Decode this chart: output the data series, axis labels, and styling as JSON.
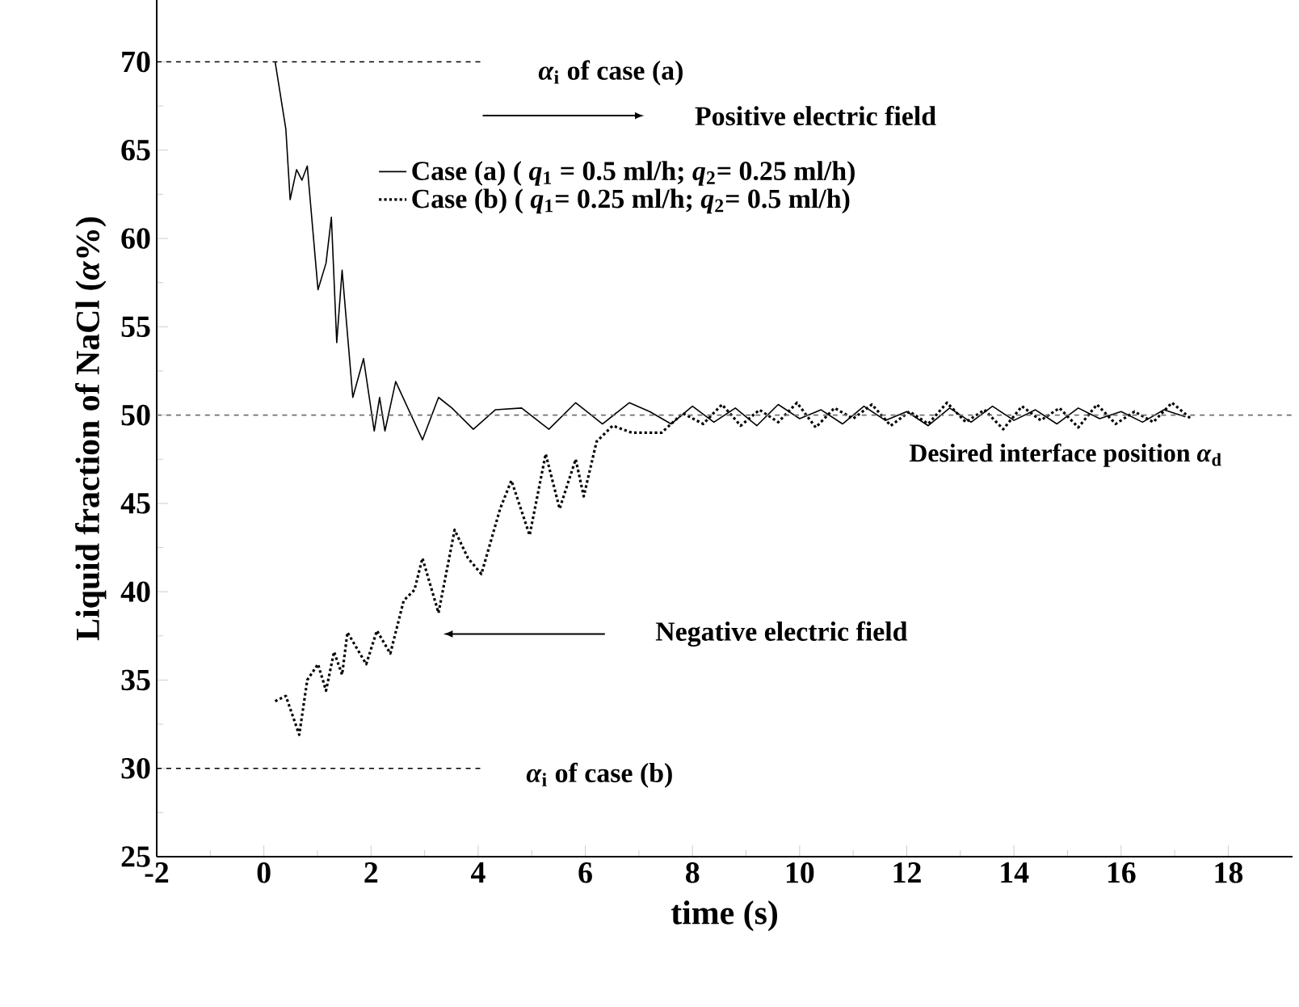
{
  "chart_data": {
    "type": "line",
    "xlabel": "time (s)",
    "ylabel": "Liquid fraction of NaCl (*α*%)",
    "xlim": [
      -2,
      19.2
    ],
    "ylim": [
      25,
      73.5
    ],
    "xticks": [
      -2,
      0,
      2,
      4,
      6,
      8,
      10,
      12,
      14,
      16,
      18
    ],
    "yticks": [
      25,
      30,
      35,
      40,
      45,
      50,
      55,
      60,
      65,
      70
    ],
    "legend": "top",
    "marker": "none",
    "grid": false,
    "ref_lines": [
      {
        "axis": "y",
        "value": 50,
        "label": "Desired interface position  *α*$_{d}$",
        "color": "#707070",
        "line_style": "dashed"
      }
    ],
    "annotations": [
      "*α*$_{i}$  of case (a)",
      "Positive electric field",
      "Negative electric field",
      "*α*$_{i}$  of case (b)"
    ],
    "series": [
      {
        "name": "Case (a) ( *q*$_{1}$ = 0.5 ml/h;  *q*$_{2}$= 0.25 ml/h)",
        "color": "#000000",
        "line_style": "solid",
        "x": [
          0.21,
          0.41,
          0.49,
          0.61,
          0.71,
          0.81,
          1.01,
          1.16,
          1.26,
          1.36,
          1.46,
          1.66,
          1.86,
          2.06,
          2.16,
          2.26,
          2.46,
          2.96,
          3.26,
          3.51,
          3.91,
          4.32,
          4.81,
          5.32,
          5.82,
          6.32,
          6.82,
          7.2,
          7.6,
          8.0,
          8.4,
          8.8,
          9.2,
          9.6,
          10.0,
          10.4,
          10.8,
          11.2,
          11.6,
          12.0,
          12.4,
          12.8,
          13.2,
          13.6,
          14.0,
          14.4,
          14.8,
          15.2,
          15.6,
          16.0,
          16.4,
          16.8,
          17.2
        ],
        "values": [
          70,
          66.2,
          62.2,
          63.9,
          63.3,
          64.1,
          57.1,
          58.6,
          61.2,
          54.1,
          58.2,
          51.0,
          53.2,
          49.1,
          51.0,
          49.1,
          51.9,
          48.6,
          51.0,
          50.4,
          49.2,
          50.3,
          50.4,
          49.2,
          50.7,
          49.5,
          50.7,
          50.2,
          49.5,
          50.5,
          49.6,
          50.4,
          49.4,
          50.6,
          49.8,
          50.3,
          49.5,
          50.5,
          49.7,
          50.2,
          49.4,
          50.4,
          49.6,
          50.5,
          49.7,
          50.3,
          49.5,
          50.4,
          49.8,
          50.2,
          49.6,
          50.3,
          49.9
        ]
      },
      {
        "name": "Case (b) ( *q*$_{1}$= 0.25 ml/h;  *q*$_{2}$= 0.5 ml/h)",
        "color": "#000000",
        "line_style": "dotted",
        "x": [
          0.21,
          0.41,
          0.66,
          0.81,
          1.01,
          1.16,
          1.31,
          1.46,
          1.56,
          1.91,
          2.11,
          2.36,
          2.61,
          2.81,
          2.96,
          3.26,
          3.56,
          3.81,
          4.06,
          4.41,
          4.62,
          4.96,
          5.26,
          5.52,
          5.82,
          5.97,
          6.21,
          6.51,
          6.87,
          7.42,
          7.82,
          8.2,
          8.55,
          8.9,
          9.25,
          9.6,
          9.95,
          10.3,
          10.65,
          11.0,
          11.35,
          11.7,
          12.05,
          12.4,
          12.75,
          13.1,
          13.45,
          13.8,
          14.15,
          14.5,
          14.85,
          15.2,
          15.55,
          15.9,
          16.25,
          16.6,
          16.95,
          17.3
        ],
        "values": [
          33.8,
          34.1,
          31.9,
          35.0,
          35.9,
          34.4,
          36.6,
          35.3,
          37.7,
          35.9,
          37.8,
          36.5,
          39.5,
          40.1,
          41.9,
          38.8,
          43.5,
          41.9,
          41.0,
          44.7,
          46.3,
          43.2,
          47.8,
          44.7,
          47.5,
          45.4,
          48.5,
          49.4,
          49.0,
          49.0,
          50.1,
          49.5,
          50.6,
          49.4,
          50.3,
          49.6,
          50.7,
          49.3,
          50.4,
          49.8,
          50.6,
          49.4,
          50.2,
          49.5,
          50.7,
          49.6,
          50.3,
          49.2,
          50.5,
          49.7,
          50.4,
          49.3,
          50.6,
          49.5,
          50.2,
          49.6,
          50.7,
          49.8
        ]
      },
      {
        "type": "line",
        "color": "#000000",
        "line_style": "dashed",
        "x": [
          -2,
          4.1
        ],
        "values": [
          70,
          70
        ]
      },
      {
        "type": "line",
        "color": "#000000",
        "line_style": "dashed",
        "x": [
          -2,
          4.1
        ],
        "values": [
          30,
          30
        ]
      }
    ]
  }
}
